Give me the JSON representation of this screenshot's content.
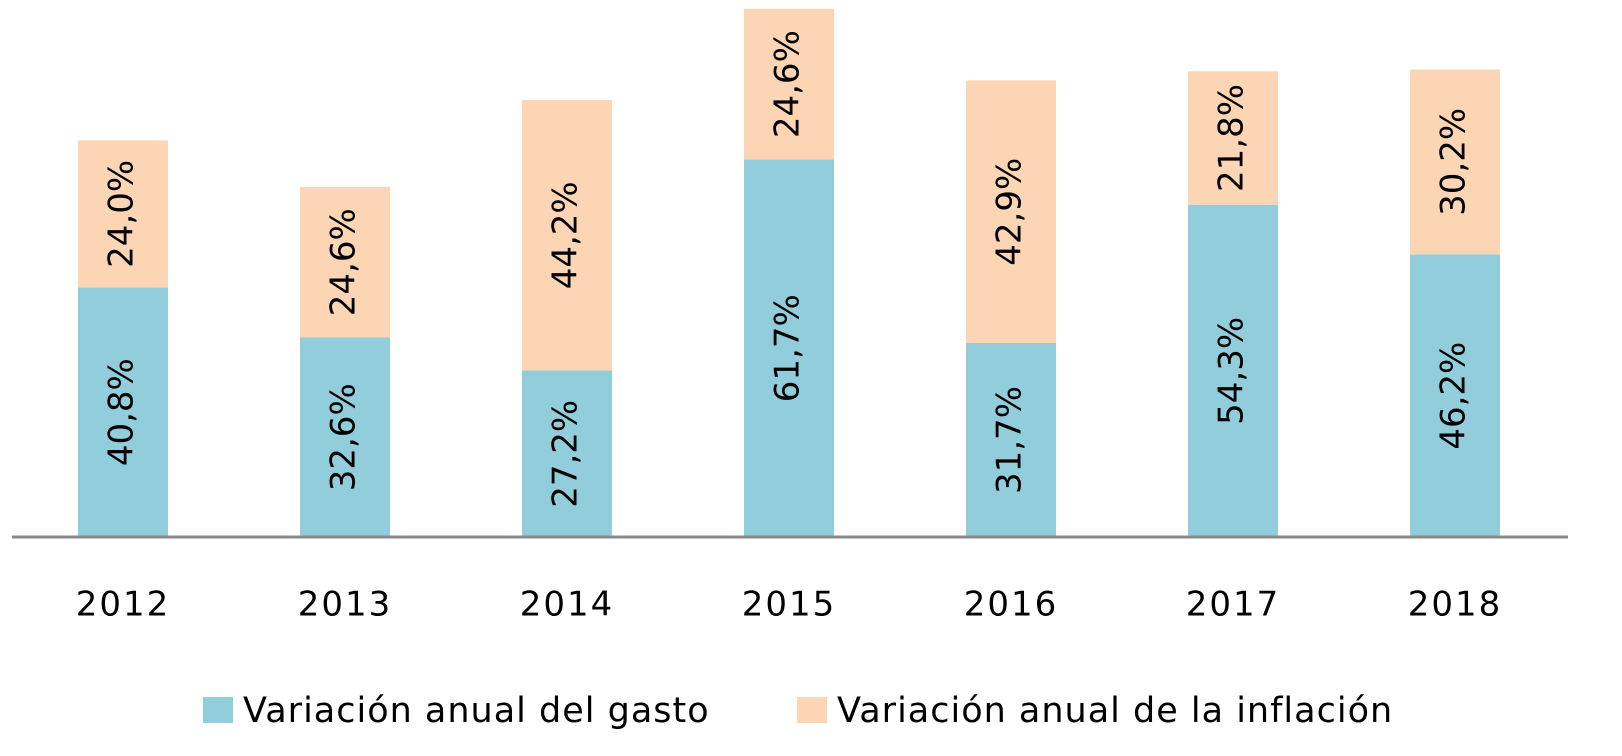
{
  "chart_data": {
    "type": "stacked_bar",
    "categories": [
      "2012",
      "2013",
      "2014",
      "2015",
      "2016",
      "2017",
      "2018"
    ],
    "series": [
      {
        "name": "Variación anual del gasto",
        "color": "#92cddc",
        "values": [
          40.8,
          32.6,
          27.2,
          61.7,
          31.7,
          54.3,
          46.2
        ],
        "value_labels": [
          "40,8%",
          "32,6%",
          "27,2%",
          "61,7%",
          "31,7%",
          "54,3%",
          "46,2%"
        ]
      },
      {
        "name": "Variación anual de la inflación",
        "color": "#fcd5b4",
        "values": [
          24.0,
          24.6,
          44.2,
          24.6,
          42.9,
          21.8,
          30.2
        ],
        "value_labels": [
          "24,0%",
          "24,6%",
          "44,2%",
          "24,6%",
          "42,9%",
          "21,8%",
          "30,2%"
        ]
      }
    ],
    "legend": "bottom"
  }
}
